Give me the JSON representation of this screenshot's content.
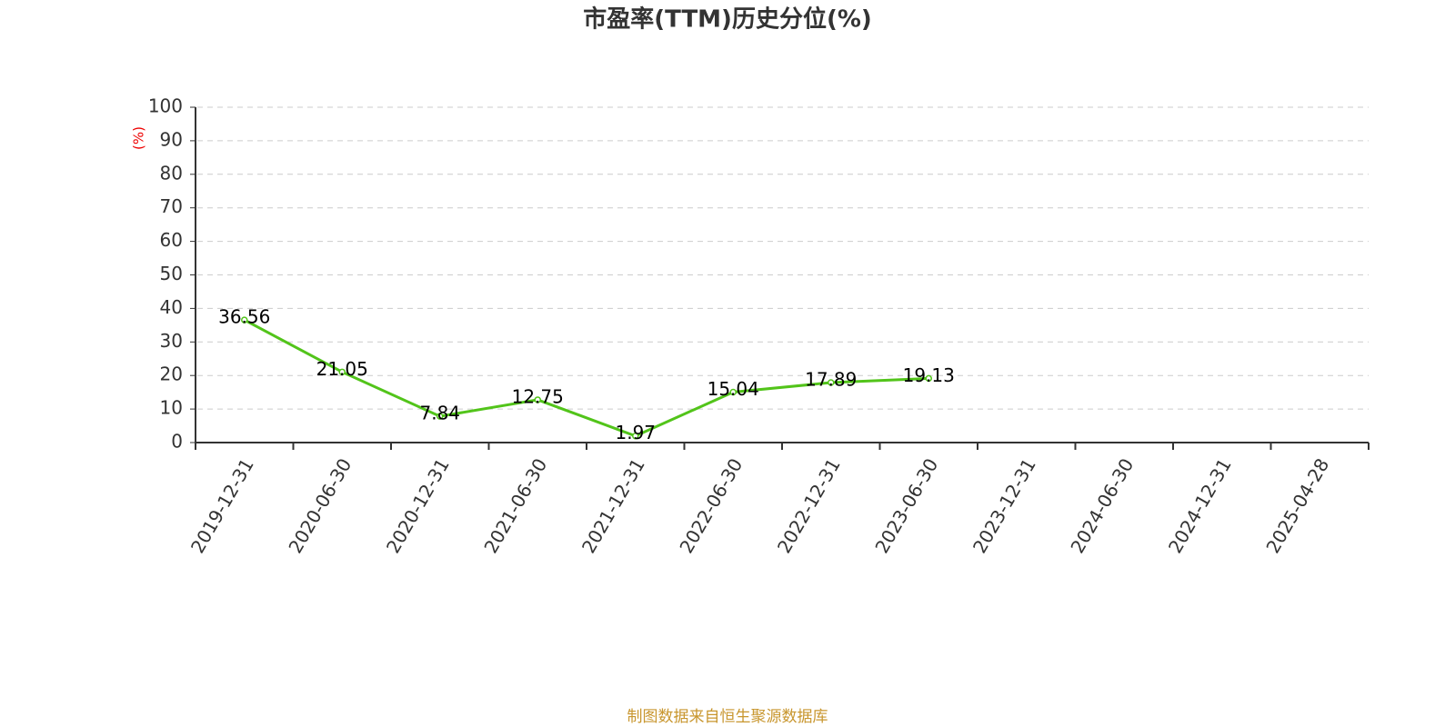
{
  "chart_data": {
    "type": "line",
    "title": "市盈率(TTM)历史分位(%)",
    "y_label": "(%)",
    "categories": [
      "2019-12-31",
      "2020-06-30",
      "2020-12-31",
      "2021-06-30",
      "2021-12-31",
      "2022-06-30",
      "2022-12-31",
      "2023-06-30",
      "2023-12-31",
      "2024-06-30",
      "2024-12-31",
      "2025-04-28"
    ],
    "series": [
      {
        "color": "#52c41a",
        "values": [
          36.56,
          21.05,
          7.84,
          12.75,
          1.97,
          15.04,
          17.89,
          19.13,
          null,
          null,
          null,
          null
        ]
      }
    ],
    "ylim": [
      0,
      100
    ],
    "yticks": [
      0,
      10,
      20,
      30,
      40,
      50,
      60,
      70,
      80,
      90,
      100
    ],
    "grid": true,
    "source": "制图数据来自恒生聚源数据库"
  }
}
